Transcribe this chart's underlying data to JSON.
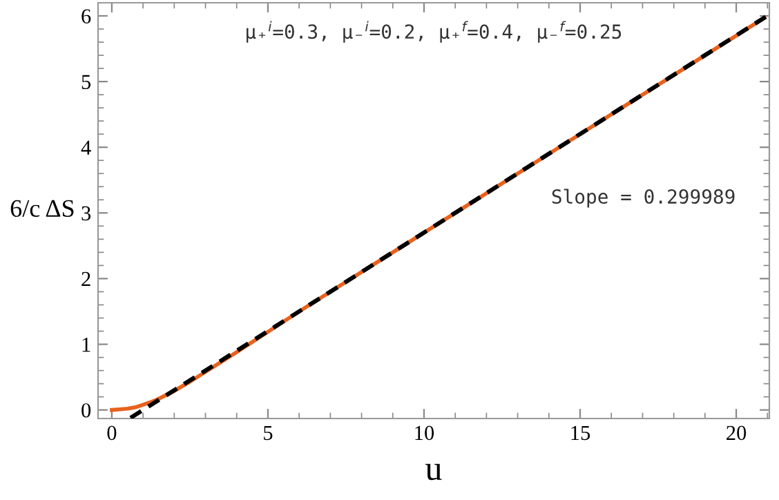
{
  "chart_data": {
    "type": "line",
    "xlabel": "u",
    "ylabel": "6/c ΔS",
    "annotations": [
      "μ₊$^{i}$=0.3, μ₋$^{i}$=0.2, μ₊$^{f}$=0.4, μ₋$^{f}$=0.25",
      "Slope = 0.299989"
    ],
    "series": [
      {
        "color": "#e8621e",
        "line_style": "solid",
        "x": [
          0,
          0.25,
          0.5,
          0.75,
          1,
          1.25,
          1.5,
          1.75,
          2,
          2.5,
          3,
          3.5,
          4,
          5,
          6,
          8,
          10,
          12,
          14,
          16,
          18,
          20,
          20.9
        ],
        "values": [
          0,
          0.01,
          0.02,
          0.04,
          0.08,
          0.12,
          0.17,
          0.23,
          0.29,
          0.43,
          0.58,
          0.73,
          0.88,
          1.19,
          1.5,
          2.1,
          2.7,
          3.3,
          3.9,
          4.5,
          5.1,
          5.7,
          5.97
        ]
      },
      {
        "color": "#000000",
        "line_style": "dashed",
        "x": [
          0.6,
          21.06
        ],
        "values": [
          -0.12,
          6.02
        ]
      }
    ],
    "xlim": [
      -0.44,
      21.06
    ],
    "ylim": [
      -0.13,
      6.2
    ],
    "xticks": [
      0,
      5,
      10,
      15,
      20
    ],
    "yticks": [
      0,
      1,
      2,
      3,
      4,
      5,
      6
    ],
    "grid": false,
    "legend": false
  }
}
